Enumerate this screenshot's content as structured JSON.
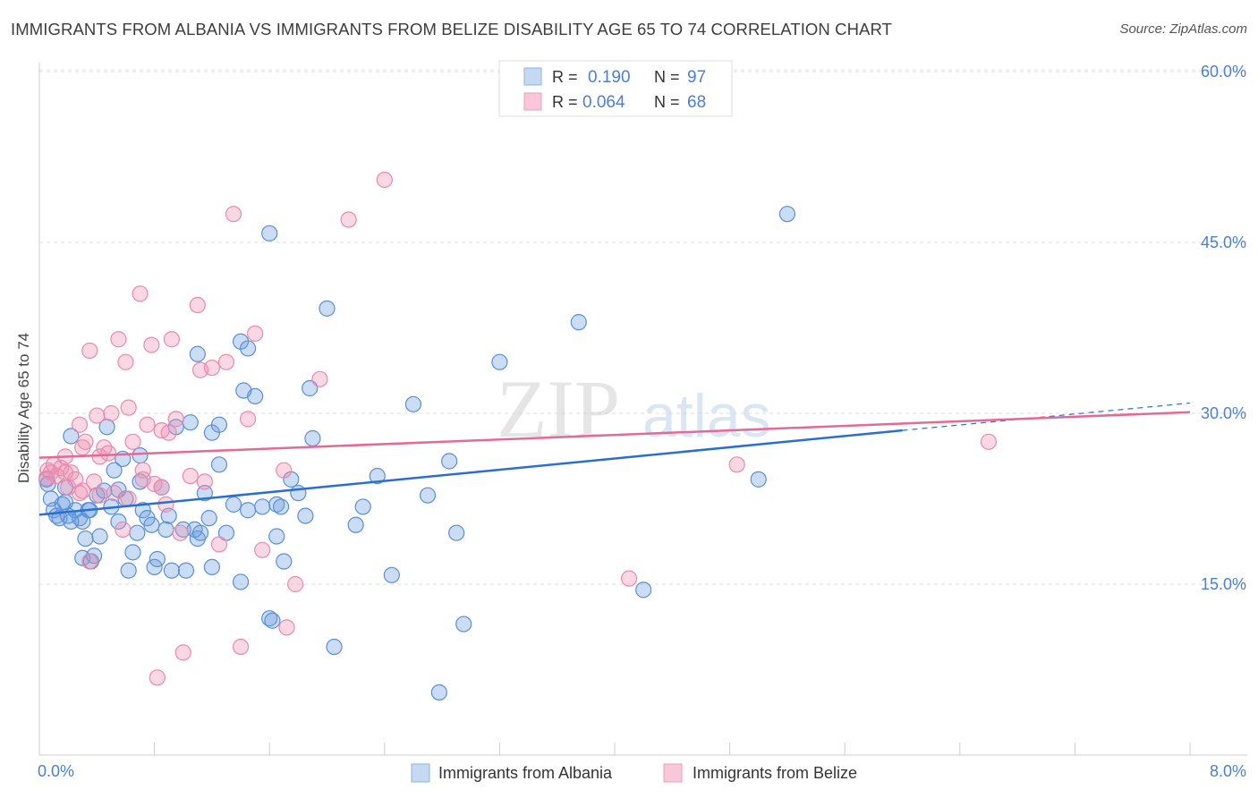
{
  "title": "IMMIGRANTS FROM ALBANIA VS IMMIGRANTS FROM BELIZE DISABILITY AGE 65 TO 74 CORRELATION CHART",
  "source": "Source: ZipAtlas.com",
  "watermark": {
    "zip": "ZIP",
    "atlas": "atlas"
  },
  "colors": {
    "albania": "#6a9ee0",
    "albania_line": "#2a6fcf",
    "belize": "#ee8fb0",
    "belize_line": "#e46a95",
    "axis_text": "#4a7fd4"
  },
  "legend": {
    "rows": [
      {
        "r_label": "R =",
        "r_value": "0.190",
        "n_label": "N =",
        "n_value": "97"
      },
      {
        "r_label": "R =",
        "r_value": "0.064",
        "n_label": "N =",
        "n_value": "68"
      }
    ]
  },
  "chart_data": {
    "type": "scatter",
    "ylabel": "Disability Age 65 to 74",
    "x_tick_labels": [
      "0.0%",
      "8.0%"
    ],
    "y_tick_labels": [
      "15.0%",
      "30.0%",
      "45.0%",
      "60.0%"
    ],
    "y_ticks": [
      15,
      30,
      45,
      60
    ],
    "xlim": [
      0,
      8
    ],
    "ylim": [
      0,
      60
    ],
    "grid": true,
    "series": [
      {
        "name": "Immigrants from Albania",
        "trend": {
          "x0": 0,
          "y0": 21.1,
          "x1": 6.0,
          "y1": 28.5,
          "dash_to_x": 8.0,
          "dash_to_y": 30.9
        },
        "points": [
          [
            0.05,
            24.2
          ],
          [
            0.06,
            23.8
          ],
          [
            0.08,
            22.5
          ],
          [
            0.1,
            21.5
          ],
          [
            0.12,
            21.0
          ],
          [
            0.14,
            20.8
          ],
          [
            0.16,
            22.0
          ],
          [
            0.18,
            23.5
          ],
          [
            0.2,
            21.0
          ],
          [
            0.22,
            28.0
          ],
          [
            0.25,
            21.5
          ],
          [
            0.28,
            20.8
          ],
          [
            0.3,
            17.3
          ],
          [
            0.32,
            19.0
          ],
          [
            0.34,
            21.5
          ],
          [
            0.36,
            17.0
          ],
          [
            0.38,
            17.5
          ],
          [
            0.4,
            22.8
          ],
          [
            0.42,
            19.2
          ],
          [
            0.45,
            23.2
          ],
          [
            0.47,
            28.8
          ],
          [
            0.5,
            21.8
          ],
          [
            0.52,
            25.0
          ],
          [
            0.55,
            20.5
          ],
          [
            0.58,
            26.0
          ],
          [
            0.6,
            22.5
          ],
          [
            0.62,
            16.2
          ],
          [
            0.65,
            17.8
          ],
          [
            0.68,
            19.5
          ],
          [
            0.7,
            24.0
          ],
          [
            0.72,
            21.5
          ],
          [
            0.75,
            20.8
          ],
          [
            0.78,
            20.2
          ],
          [
            0.8,
            16.5
          ],
          [
            0.82,
            17.2
          ],
          [
            0.85,
            23.5
          ],
          [
            0.88,
            19.8
          ],
          [
            0.9,
            21.0
          ],
          [
            0.92,
            16.2
          ],
          [
            0.95,
            28.8
          ],
          [
            1.0,
            19.8
          ],
          [
            1.02,
            16.2
          ],
          [
            1.05,
            29.2
          ],
          [
            1.08,
            19.8
          ],
          [
            1.1,
            19.0
          ],
          [
            1.12,
            19.5
          ],
          [
            1.15,
            23.0
          ],
          [
            1.18,
            20.8
          ],
          [
            1.2,
            16.5
          ],
          [
            1.25,
            25.5
          ],
          [
            1.3,
            19.5
          ],
          [
            1.35,
            22.0
          ],
          [
            1.4,
            15.2
          ],
          [
            1.45,
            21.5
          ],
          [
            1.5,
            31.5
          ],
          [
            1.55,
            21.8
          ],
          [
            1.6,
            12.0
          ],
          [
            1.62,
            11.8
          ],
          [
            1.65,
            19.2
          ],
          [
            1.7,
            17.0
          ],
          [
            1.75,
            24.2
          ],
          [
            1.8,
            23.0
          ],
          [
            1.85,
            21.0
          ],
          [
            1.9,
            27.8
          ],
          [
            2.0,
            39.2
          ],
          [
            2.05,
            9.5
          ],
          [
            2.2,
            20.2
          ],
          [
            2.25,
            21.8
          ],
          [
            2.35,
            24.5
          ],
          [
            2.45,
            15.8
          ],
          [
            2.6,
            30.8
          ],
          [
            2.7,
            22.8
          ],
          [
            2.78,
            5.5
          ],
          [
            2.85,
            25.8
          ],
          [
            2.9,
            19.5
          ],
          [
            2.95,
            11.5
          ],
          [
            3.2,
            34.5
          ],
          [
            3.75,
            38.0
          ],
          [
            4.2,
            14.5
          ],
          [
            5.0,
            24.2
          ],
          [
            5.2,
            47.5
          ],
          [
            1.88,
            32.2
          ],
          [
            1.42,
            32.0
          ],
          [
            1.6,
            45.8
          ],
          [
            1.65,
            22.0
          ],
          [
            1.68,
            21.8
          ],
          [
            1.1,
            35.2
          ],
          [
            1.2,
            28.3
          ],
          [
            1.4,
            36.3
          ],
          [
            1.45,
            35.7
          ],
          [
            1.25,
            29.0
          ],
          [
            0.7,
            26.3
          ],
          [
            0.55,
            23.3
          ],
          [
            0.35,
            21.5
          ],
          [
            0.3,
            20.5
          ],
          [
            0.22,
            20.5
          ],
          [
            0.18,
            22.2
          ]
        ]
      },
      {
        "name": "Immigrants from Belize",
        "trend": {
          "x0": 0,
          "y0": 26.1,
          "x1": 8.0,
          "y1": 30.1
        },
        "points": [
          [
            0.05,
            24.3
          ],
          [
            0.06,
            25.0
          ],
          [
            0.08,
            24.8
          ],
          [
            0.1,
            25.5
          ],
          [
            0.12,
            24.5
          ],
          [
            0.15,
            25.2
          ],
          [
            0.18,
            26.2
          ],
          [
            0.2,
            23.5
          ],
          [
            0.22,
            24.8
          ],
          [
            0.25,
            24.2
          ],
          [
            0.28,
            29.0
          ],
          [
            0.3,
            23.2
          ],
          [
            0.32,
            27.5
          ],
          [
            0.35,
            17.0
          ],
          [
            0.38,
            24.0
          ],
          [
            0.4,
            29.8
          ],
          [
            0.42,
            26.2
          ],
          [
            0.45,
            27.0
          ],
          [
            0.48,
            26.5
          ],
          [
            0.5,
            30.0
          ],
          [
            0.52,
            23.0
          ],
          [
            0.55,
            36.5
          ],
          [
            0.58,
            19.8
          ],
          [
            0.6,
            34.5
          ],
          [
            0.62,
            30.5
          ],
          [
            0.65,
            27.5
          ],
          [
            0.7,
            40.5
          ],
          [
            0.72,
            25.0
          ],
          [
            0.75,
            29.0
          ],
          [
            0.78,
            36.0
          ],
          [
            0.8,
            23.8
          ],
          [
            0.82,
            6.8
          ],
          [
            0.85,
            28.5
          ],
          [
            0.88,
            22.0
          ],
          [
            0.9,
            28.3
          ],
          [
            0.92,
            36.5
          ],
          [
            0.95,
            29.5
          ],
          [
            1.0,
            9.0
          ],
          [
            1.05,
            24.5
          ],
          [
            1.1,
            39.5
          ],
          [
            1.12,
            33.8
          ],
          [
            1.15,
            24.0
          ],
          [
            1.2,
            34.0
          ],
          [
            1.25,
            18.5
          ],
          [
            1.3,
            34.5
          ],
          [
            1.35,
            47.5
          ],
          [
            1.4,
            9.5
          ],
          [
            1.45,
            29.5
          ],
          [
            1.5,
            37.0
          ],
          [
            1.55,
            18.0
          ],
          [
            1.7,
            25.0
          ],
          [
            1.72,
            11.2
          ],
          [
            1.78,
            15.0
          ],
          [
            1.95,
            33.0
          ],
          [
            2.15,
            47.0
          ],
          [
            2.4,
            50.5
          ],
          [
            4.1,
            15.5
          ],
          [
            4.85,
            25.5
          ],
          [
            6.6,
            27.5
          ],
          [
            0.28,
            23.0
          ],
          [
            0.42,
            22.8
          ],
          [
            0.62,
            22.5
          ],
          [
            0.72,
            24.2
          ],
          [
            0.85,
            23.5
          ],
          [
            0.98,
            19.5
          ],
          [
            0.35,
            35.5
          ],
          [
            0.18,
            24.8
          ],
          [
            0.3,
            27.0
          ]
        ]
      }
    ]
  }
}
